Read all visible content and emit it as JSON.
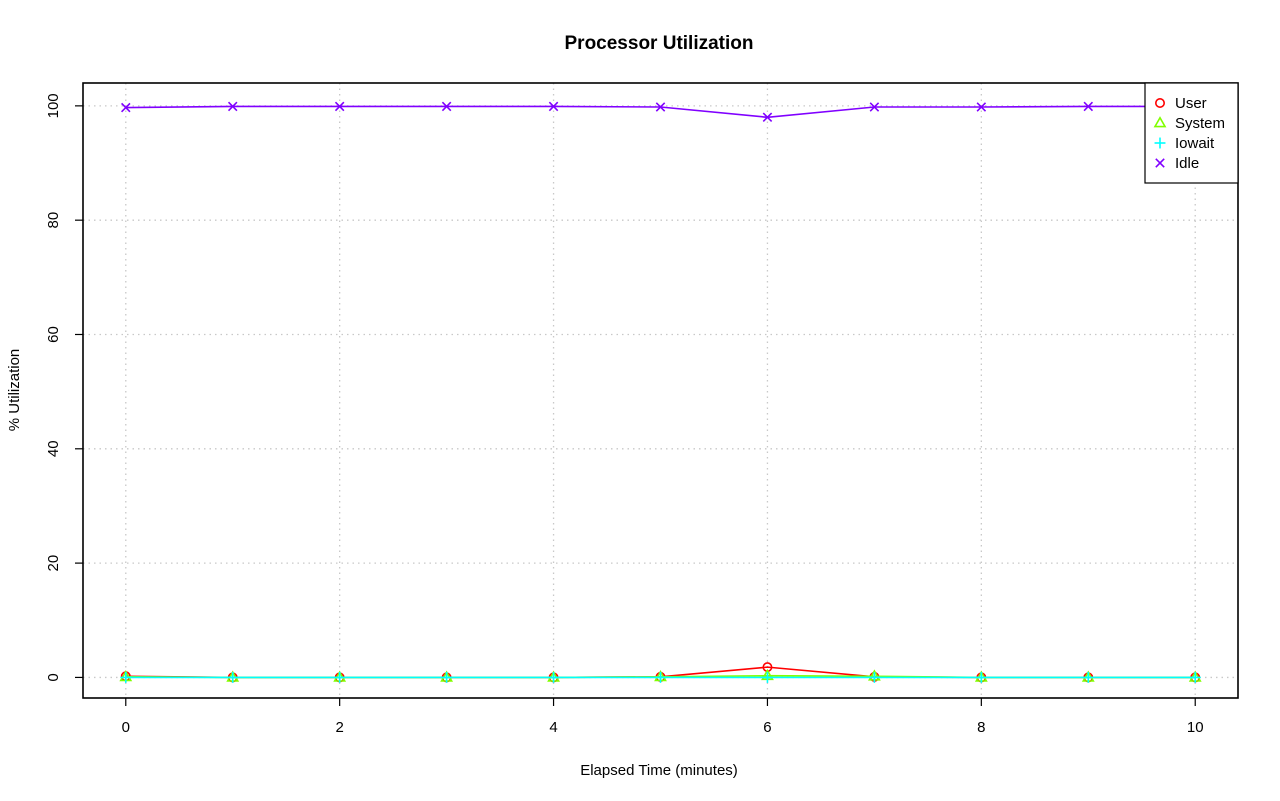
{
  "chart_data": {
    "type": "line",
    "title": "Processor Utilization",
    "xlabel": "Elapsed Time (minutes)",
    "ylabel": "% Utilization",
    "x": [
      0,
      1,
      2,
      3,
      4,
      5,
      6,
      7,
      8,
      9,
      10
    ],
    "xlim": [
      -0.4,
      10.4
    ],
    "ylim": [
      -3.6,
      104
    ],
    "x_ticks": [
      0,
      2,
      4,
      6,
      8,
      10
    ],
    "y_ticks": [
      0,
      20,
      40,
      60,
      80,
      100
    ],
    "grid": true,
    "legend_position": "top-right",
    "series": [
      {
        "name": "User",
        "color": "#ff0000",
        "marker": "circle",
        "values": [
          0.2,
          0.0,
          0.0,
          0.0,
          0.0,
          0.1,
          1.8,
          0.1,
          0.0,
          0.0,
          0.0
        ]
      },
      {
        "name": "System",
        "color": "#80ff00",
        "marker": "triangle",
        "values": [
          0.1,
          0.0,
          0.0,
          0.0,
          0.0,
          0.1,
          0.3,
          0.2,
          0.0,
          0.0,
          0.0
        ]
      },
      {
        "name": "Iowait",
        "color": "#00ffff",
        "marker": "plus",
        "values": [
          0.0,
          0.0,
          0.0,
          0.0,
          0.0,
          0.0,
          0.0,
          0.0,
          0.0,
          0.0,
          0.0
        ]
      },
      {
        "name": "Idle",
        "color": "#8000ff",
        "marker": "cross",
        "values": [
          99.7,
          99.9,
          99.9,
          99.9,
          99.9,
          99.8,
          98.0,
          99.8,
          99.8,
          99.9,
          99.9
        ]
      }
    ]
  }
}
